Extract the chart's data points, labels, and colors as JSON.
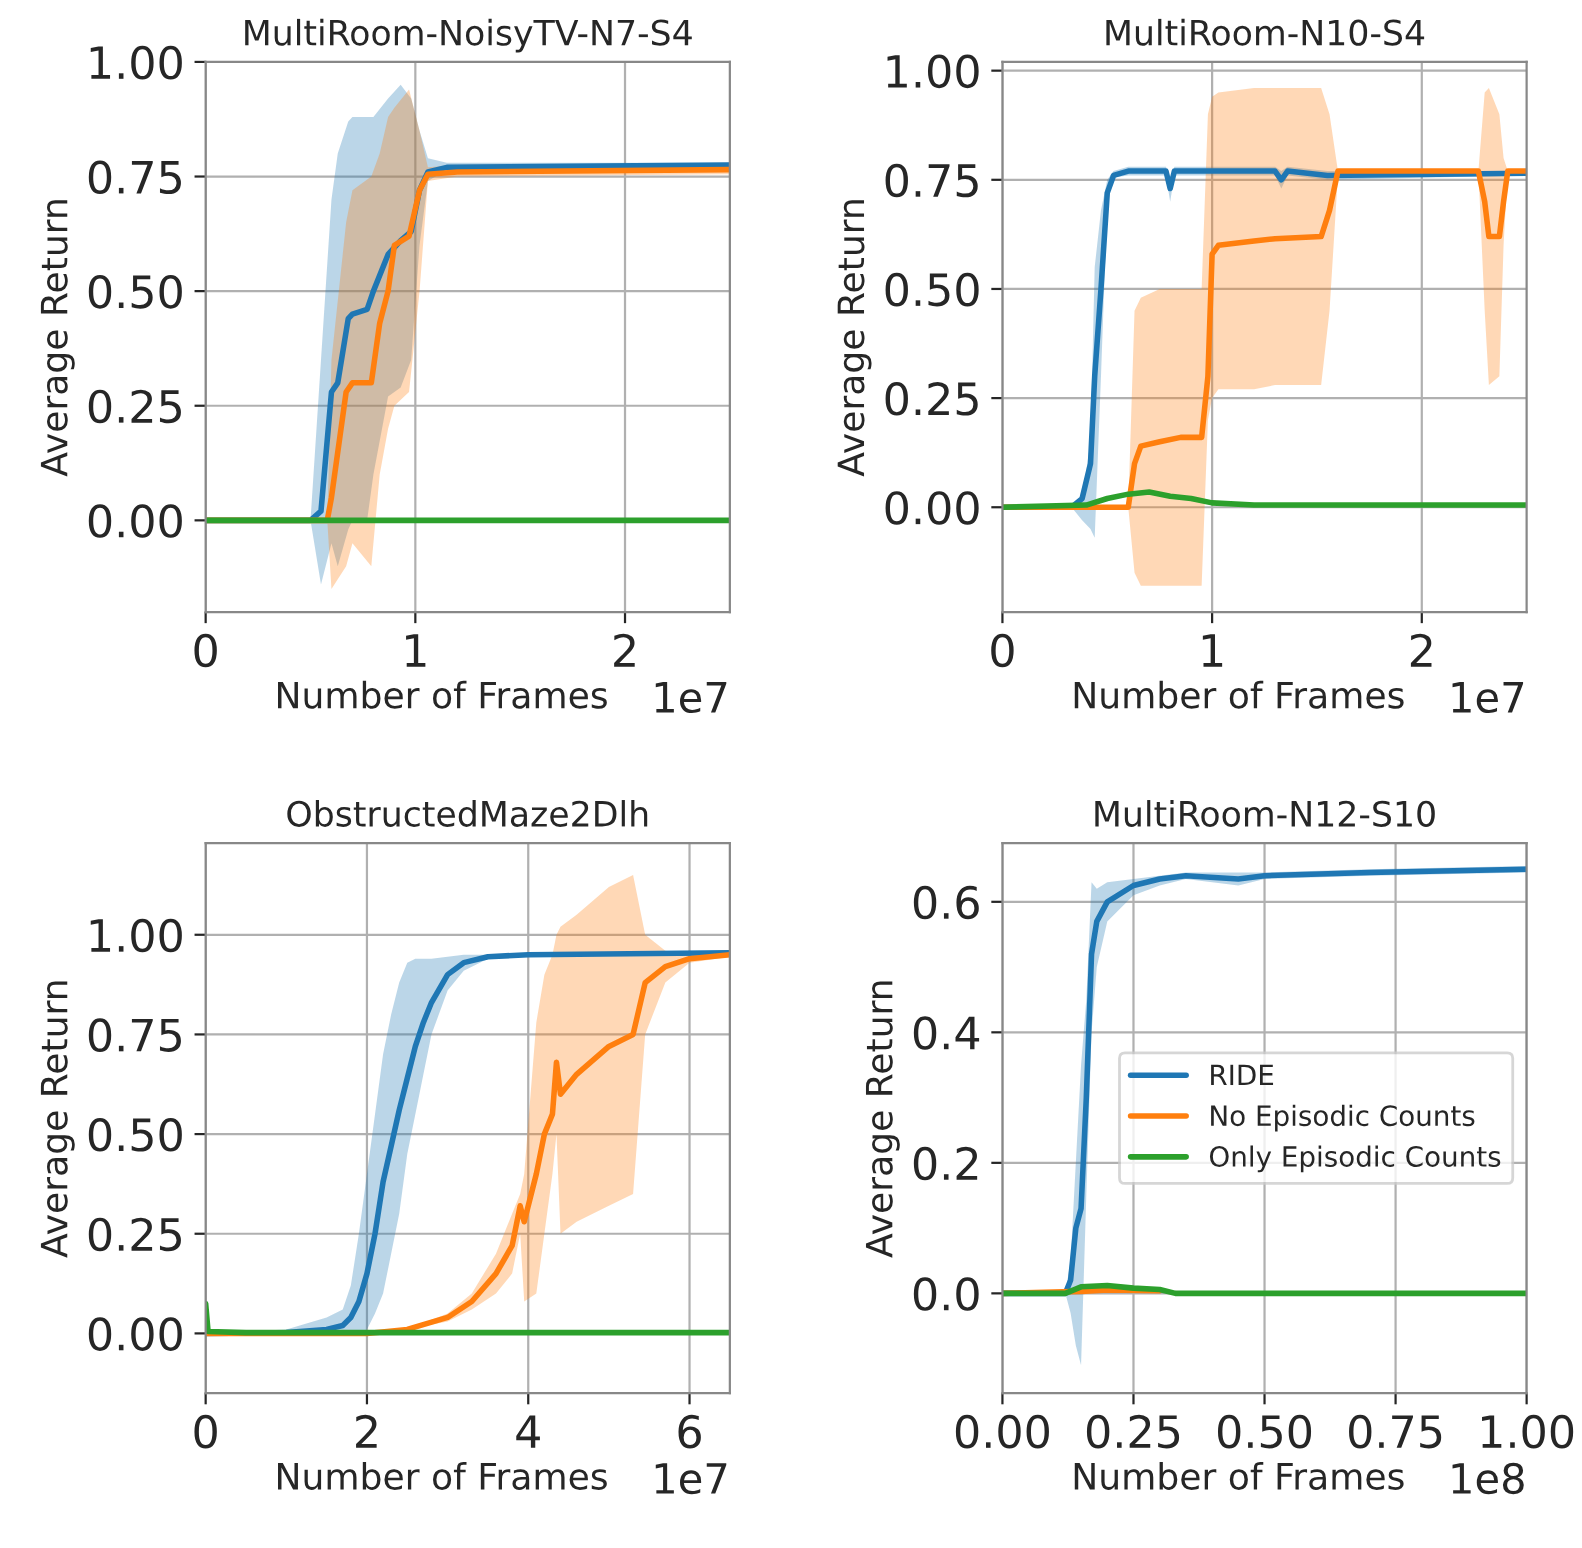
{
  "chart_data": [
    {
      "type": "line",
      "title": "MultiRoom-NoisyTV-N7-S4",
      "xlabel": "Number of Frames",
      "ylabel": "Average Return",
      "annotations": [
        "1e7"
      ],
      "xlim": [
        0,
        2.5
      ],
      "xticks": [
        0,
        1,
        2
      ],
      "ylim": [
        -0.2,
        1.0
      ],
      "yticks": [
        {
          "value": 0,
          "label": "0.00"
        },
        {
          "value": 0.25,
          "label": "0.25"
        },
        {
          "value": 0.5,
          "label": "0.50"
        },
        {
          "value": 0.75,
          "label": "0.75"
        },
        {
          "value": 1.0,
          "label": "1.00"
        }
      ],
      "grid": true,
      "series": [
        {
          "color": "#1f77b4",
          "x": [
            0,
            0.5,
            0.55,
            0.6,
            0.63,
            0.68,
            0.7,
            0.77,
            0.8,
            0.87,
            0.93,
            0.98,
            1.02,
            1.06,
            1.15,
            2.5
          ],
          "values": [
            0,
            0,
            0.02,
            0.28,
            0.3,
            0.44,
            0.45,
            0.46,
            0.5,
            0.58,
            0.61,
            0.63,
            0.72,
            0.76,
            0.77,
            0.775
          ],
          "upper": [
            0,
            0,
            0.35,
            0.7,
            0.8,
            0.87,
            0.88,
            0.88,
            0.88,
            0.92,
            0.95,
            0.92,
            0.85,
            0.79,
            0.78,
            0.78
          ],
          "lower": [
            0,
            0,
            -0.14,
            -0.05,
            -0.1,
            -0.02,
            0,
            0,
            0.1,
            0.27,
            0.29,
            0.35,
            0.6,
            0.74,
            0.765,
            0.77
          ]
        },
        {
          "color": "#ff7f0e",
          "x": [
            0,
            0.58,
            0.6,
            0.67,
            0.7,
            0.79,
            0.83,
            0.87,
            0.9,
            0.97,
            1.02,
            1.06,
            1.2,
            2.5
          ],
          "values": [
            0,
            0,
            0.05,
            0.28,
            0.3,
            0.3,
            0.43,
            0.5,
            0.6,
            0.62,
            0.72,
            0.755,
            0.76,
            0.765
          ],
          "upper": [
            0,
            0,
            0.35,
            0.65,
            0.72,
            0.75,
            0.8,
            0.88,
            0.9,
            0.94,
            0.85,
            0.77,
            0.775,
            0.78
          ],
          "lower": [
            0,
            0,
            -0.15,
            -0.1,
            -0.05,
            -0.1,
            0.1,
            0.2,
            0.25,
            0.28,
            0.5,
            0.74,
            0.75,
            0.755
          ]
        },
        {
          "color": "#2ca02c",
          "x": [
            0,
            2.5
          ],
          "values": [
            0,
            0
          ]
        }
      ]
    },
    {
      "type": "line",
      "title": "MultiRoom-N10-S4",
      "xlabel": "Number of Frames",
      "ylabel": "Average Return",
      "annotations": [
        "1e7"
      ],
      "xlim": [
        0,
        2.5
      ],
      "xticks": [
        0,
        1,
        2
      ],
      "ylim": [
        -0.24,
        1.02
      ],
      "yticks": [
        {
          "value": 0,
          "label": "0.00"
        },
        {
          "value": 0.25,
          "label": "0.25"
        },
        {
          "value": 0.5,
          "label": "0.50"
        },
        {
          "value": 0.75,
          "label": "0.75"
        },
        {
          "value": 1.0,
          "label": "1.00"
        }
      ],
      "grid": true,
      "series": [
        {
          "color": "#1f77b4",
          "x": [
            0,
            0.33,
            0.38,
            0.42,
            0.44,
            0.47,
            0.5,
            0.53,
            0.6,
            0.78,
            0.8,
            0.82,
            1.3,
            1.33,
            1.36,
            1.55,
            2.5
          ],
          "values": [
            0,
            0,
            0.02,
            0.1,
            0.3,
            0.5,
            0.72,
            0.76,
            0.77,
            0.77,
            0.73,
            0.77,
            0.77,
            0.75,
            0.77,
            0.76,
            0.765
          ],
          "upper": [
            0,
            0,
            0.02,
            0.15,
            0.55,
            0.68,
            0.75,
            0.77,
            0.78,
            0.78,
            0.75,
            0.78,
            0.78,
            0.77,
            0.78,
            0.77,
            0.77
          ],
          "lower": [
            0,
            0,
            -0.03,
            -0.05,
            -0.07,
            0.3,
            0.7,
            0.755,
            0.76,
            0.76,
            0.7,
            0.76,
            0.76,
            0.73,
            0.76,
            0.75,
            0.76
          ]
        },
        {
          "color": "#ff7f0e",
          "x": [
            0,
            0.6,
            0.63,
            0.66,
            0.75,
            0.85,
            0.95,
            0.98,
            1.0,
            1.03,
            1.2,
            1.3,
            1.52,
            1.56,
            1.6,
            2.27,
            2.3,
            2.32,
            2.37,
            2.39,
            2.41,
            2.5
          ],
          "values": [
            0,
            0,
            0.1,
            0.14,
            0.15,
            0.16,
            0.16,
            0.3,
            0.58,
            0.6,
            0.61,
            0.615,
            0.62,
            0.68,
            0.77,
            0.77,
            0.7,
            0.62,
            0.62,
            0.7,
            0.77,
            0.77
          ],
          "upper": [
            0,
            0,
            0.45,
            0.48,
            0.5,
            0.5,
            0.5,
            0.9,
            0.94,
            0.95,
            0.96,
            0.96,
            0.96,
            0.9,
            0.77,
            0.77,
            0.95,
            0.96,
            0.9,
            0.8,
            0.77,
            0.77
          ],
          "lower": [
            0,
            0,
            -0.15,
            -0.18,
            -0.18,
            -0.18,
            -0.18,
            0.2,
            0.25,
            0.27,
            0.27,
            0.28,
            0.28,
            0.45,
            0.76,
            0.77,
            0.45,
            0.28,
            0.3,
            0.6,
            0.77,
            0.77
          ]
        },
        {
          "color": "#2ca02c",
          "x": [
            0,
            0.4,
            0.5,
            0.6,
            0.7,
            0.8,
            0.9,
            1.0,
            1.2,
            2.5
          ],
          "values": [
            0,
            0.005,
            0.02,
            0.03,
            0.035,
            0.025,
            0.02,
            0.01,
            0.005,
            0.005
          ]
        }
      ]
    },
    {
      "type": "line",
      "title": "ObstructedMaze2Dlh",
      "xlabel": "Number of Frames",
      "ylabel": "Average Return",
      "annotations": [
        "1e7"
      ],
      "xlim": [
        0,
        6.5
      ],
      "xticks": [
        0,
        2,
        4,
        6
      ],
      "ylim": [
        -0.15,
        1.23
      ],
      "yticks": [
        {
          "value": 0,
          "label": "0.00"
        },
        {
          "value": 0.25,
          "label": "0.25"
        },
        {
          "value": 0.5,
          "label": "0.50"
        },
        {
          "value": 0.75,
          "label": "0.75"
        },
        {
          "value": 1.0,
          "label": "1.00"
        }
      ],
      "grid": true,
      "series": [
        {
          "color": "#1f77b4",
          "x": [
            0,
            1,
            1.5,
            1.7,
            1.8,
            1.9,
            2.0,
            2.1,
            2.2,
            2.3,
            2.4,
            2.5,
            2.6,
            2.7,
            2.8,
            3.0,
            3.2,
            3.5,
            4.0,
            6.5
          ],
          "values": [
            0,
            0.002,
            0.01,
            0.02,
            0.04,
            0.08,
            0.15,
            0.25,
            0.38,
            0.47,
            0.56,
            0.64,
            0.72,
            0.78,
            0.83,
            0.9,
            0.93,
            0.945,
            0.95,
            0.955
          ],
          "upper": [
            0,
            0.01,
            0.04,
            0.06,
            0.12,
            0.25,
            0.4,
            0.55,
            0.7,
            0.8,
            0.88,
            0.93,
            0.94,
            0.94,
            0.94,
            0.945,
            0.95,
            0.95,
            0.955,
            0.96
          ],
          "lower": [
            0,
            0,
            0,
            0,
            0,
            0,
            0.01,
            0.05,
            0.1,
            0.2,
            0.3,
            0.45,
            0.55,
            0.65,
            0.75,
            0.86,
            0.91,
            0.94,
            0.945,
            0.95
          ]
        },
        {
          "color": "#ff7f0e",
          "x": [
            0,
            2,
            2.5,
            3,
            3.3,
            3.6,
            3.8,
            3.9,
            3.95,
            4.1,
            4.2,
            4.3,
            4.35,
            4.4,
            4.6,
            5.0,
            5.3,
            5.45,
            5.7,
            6.0,
            6.5
          ],
          "values": [
            0,
            0,
            0.01,
            0.04,
            0.08,
            0.15,
            0.22,
            0.32,
            0.28,
            0.4,
            0.5,
            0.55,
            0.68,
            0.6,
            0.65,
            0.72,
            0.75,
            0.88,
            0.92,
            0.94,
            0.95
          ],
          "upper": [
            0,
            0,
            0.01,
            0.05,
            0.1,
            0.2,
            0.3,
            0.35,
            0.4,
            0.78,
            0.9,
            0.95,
            1.0,
            1.02,
            1.05,
            1.12,
            1.15,
            1.0,
            0.96,
            0.95,
            0.955
          ],
          "lower": [
            0,
            0,
            0.01,
            0.03,
            0.06,
            0.1,
            0.15,
            0.25,
            0.08,
            0.1,
            0.25,
            0.4,
            0.5,
            0.25,
            0.28,
            0.32,
            0.35,
            0.75,
            0.88,
            0.93,
            0.945
          ]
        },
        {
          "color": "#2ca02c",
          "x": [
            0,
            0.03,
            0.5,
            6.5
          ],
          "values": [
            0.075,
            0.005,
            0.002,
            0.002
          ]
        }
      ]
    },
    {
      "type": "line",
      "title": "MultiRoom-N12-S10",
      "xlabel": "Number of Frames",
      "ylabel": "Average Return",
      "annotations": [
        "1e8"
      ],
      "xlim": [
        0,
        1.0
      ],
      "xticks": [
        {
          "value": 0,
          "label": "0.00"
        },
        {
          "value": 0.25,
          "label": "0.25"
        },
        {
          "value": 0.5,
          "label": "0.50"
        },
        {
          "value": 0.75,
          "label": "0.75"
        },
        {
          "value": 1.0,
          "label": "1.00"
        }
      ],
      "ylim": [
        -0.153,
        0.69
      ],
      "yticks": [
        {
          "value": 0,
          "label": "0.0"
        },
        {
          "value": 0.2,
          "label": "0.2"
        },
        {
          "value": 0.4,
          "label": "0.4"
        },
        {
          "value": 0.6,
          "label": "0.6"
        }
      ],
      "grid": true,
      "legend": "center right",
      "series": [
        {
          "name": "RIDE",
          "color": "#1f77b4",
          "x": [
            0,
            0.12,
            0.13,
            0.14,
            0.15,
            0.16,
            0.17,
            0.18,
            0.2,
            0.25,
            0.3,
            0.35,
            0.45,
            0.5,
            0.7,
            1.0
          ],
          "values": [
            0,
            0,
            0.02,
            0.1,
            0.13,
            0.3,
            0.52,
            0.57,
            0.6,
            0.625,
            0.635,
            0.64,
            0.635,
            0.64,
            0.645,
            0.65
          ],
          "upper": [
            0,
            0,
            0.05,
            0.2,
            0.35,
            0.45,
            0.63,
            0.62,
            0.63,
            0.635,
            0.64,
            0.645,
            0.645,
            0.645,
            0.65,
            0.655
          ],
          "lower": [
            0,
            0,
            -0.03,
            -0.08,
            -0.11,
            0.15,
            0.4,
            0.5,
            0.57,
            0.61,
            0.625,
            0.635,
            0.625,
            0.635,
            0.64,
            0.645
          ]
        },
        {
          "name": "No Episodic Counts",
          "color": "#ff7f0e",
          "x": [
            0,
            0.15,
            0.2,
            0.3
          ],
          "values": [
            0,
            0.003,
            0.005,
            0.004
          ]
        },
        {
          "name": "Only Episodic Counts",
          "color": "#2ca02c",
          "x": [
            0,
            0.12,
            0.15,
            0.2,
            0.25,
            0.3,
            0.33,
            1.0
          ],
          "values": [
            0,
            0,
            0.01,
            0.012,
            0.008,
            0.006,
            0,
            0
          ]
        }
      ]
    }
  ]
}
